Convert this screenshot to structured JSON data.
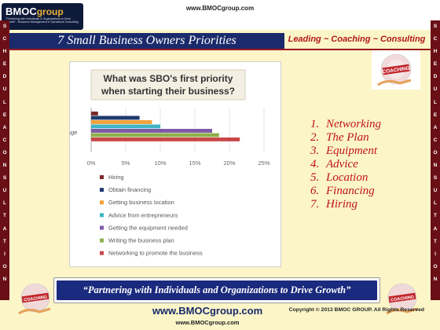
{
  "header": {
    "top_url": "www.BMOCgroup.com",
    "logo_word_a": "BMOC",
    "logo_word_b": "group",
    "logo_tagline": "\"Partnering with Individuals & Organizations to Drive Growth\" - Business Management & Operations Consulting"
  },
  "slide": {
    "title": "7 Small Business Owners Priorities",
    "tagline": "Leading ~ Coaching ~ Consulting",
    "side_letters": [
      "S",
      "C",
      "H",
      "E",
      "D",
      "U",
      "L",
      "E",
      "A",
      "C",
      "O",
      "N",
      "S",
      "U",
      "L",
      "T",
      "A",
      "T",
      "I",
      "O",
      "N"
    ],
    "emblem_label": "COACHING",
    "priorities": [
      {
        "num": "1.",
        "text": "Networking"
      },
      {
        "num": "2.",
        "text": "The Plan"
      },
      {
        "num": "3.",
        "text": "Equipment"
      },
      {
        "num": "4.",
        "text": "Advice"
      },
      {
        "num": "5.",
        "text": "Location"
      },
      {
        "num": "6.",
        "text": "Financing"
      },
      {
        "num": "7.",
        "text": "Hiring"
      }
    ]
  },
  "footer": {
    "band_text": "“Partnering with Individuals and Organizations to Drive Growth”",
    "url": "www.BMOCgroup.com",
    "bottom_url": "www.BMOCgroup.com",
    "copyright": "Copyright © 2013 BMOC GROUP. All Rights Reserved"
  },
  "colors": {
    "slide_background": "#fbf5c8",
    "title_band": "#1a2a6b",
    "side_strip": "#6b0f17",
    "accent_red": "#c01414"
  },
  "chart_data": {
    "type": "bar",
    "orientation": "horizontal",
    "title": "What was SBO's first priority when starting their business?",
    "category_label": "Percentage",
    "x_ticks": [
      "0%",
      "5%",
      "10%",
      "15%",
      "20%",
      "25%"
    ],
    "xlim": [
      0,
      25
    ],
    "legend_position": "bottom",
    "series": [
      {
        "name": "Hiring",
        "value": 1.0,
        "color": "#7b2a2a"
      },
      {
        "name": "Obtain financing",
        "value": 7.0,
        "color": "#1f3b6e"
      },
      {
        "name": "Getting business location",
        "value": 8.8,
        "color": "#f2a23a"
      },
      {
        "name": "Advice from entrepreneurs",
        "value": 10.0,
        "color": "#3eb4c4"
      },
      {
        "name": "Getting the equipment needed",
        "value": 17.5,
        "color": "#7e5aa6"
      },
      {
        "name": "Writing the business plan",
        "value": 18.5,
        "color": "#8eb04a"
      },
      {
        "name": "Networking to promote the business",
        "value": 21.5,
        "color": "#c9474a"
      }
    ]
  }
}
